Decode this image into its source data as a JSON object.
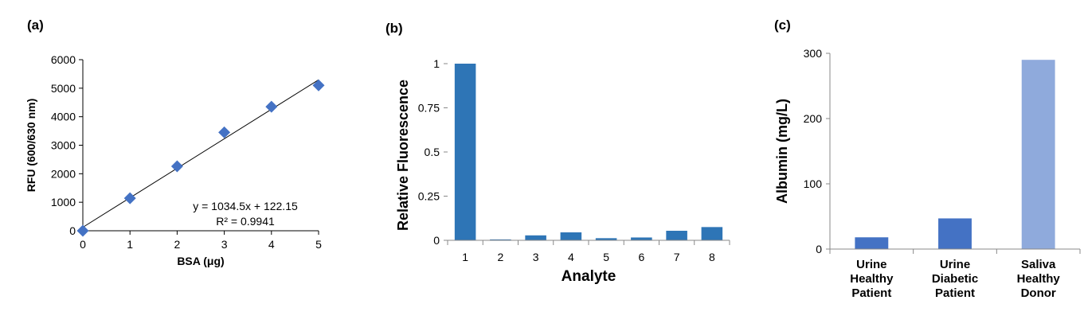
{
  "chart_data": [
    {
      "panel_label": "(a)",
      "type": "scatter",
      "xlabel": "BSA (μg)",
      "ylabel": "RFU (600/630 nm)",
      "xlim": [
        0,
        5
      ],
      "ylim": [
        0,
        6000
      ],
      "xticks": [
        "0",
        "1",
        "2",
        "3",
        "4",
        "5"
      ],
      "yticks": [
        "0",
        "1000",
        "2000",
        "3000",
        "4000",
        "5000",
        "6000"
      ],
      "grid": false,
      "marker_color": "#4472C4",
      "x": [
        0,
        1,
        2,
        3,
        4,
        5
      ],
      "y": [
        0,
        1140,
        2260,
        3450,
        4350,
        5100
      ],
      "trendline": {
        "slope": 1034.5,
        "intercept": 122.15
      },
      "annotations": [
        "y = 1034.5x + 122.15",
        "R² = 0.9941"
      ]
    },
    {
      "panel_label": "(b)",
      "type": "bar",
      "xlabel": "Analyte",
      "ylabel": "Relative Fluorescence",
      "ylim": [
        0,
        1
      ],
      "categories": [
        "1",
        "2",
        "3",
        "4",
        "5",
        "6",
        "7",
        "8"
      ],
      "yticks": [
        "0",
        "0.25",
        "0.5",
        "0.75",
        "1"
      ],
      "grid": false,
      "bar_color": "#2E75B6",
      "values": [
        1.0,
        0.005,
        0.028,
        0.045,
        0.012,
        0.016,
        0.054,
        0.075
      ]
    },
    {
      "panel_label": "(c)",
      "type": "bar",
      "xlabel": "",
      "ylabel": "Albumin (mg/L)",
      "ylim": [
        0,
        300
      ],
      "categories": [
        [
          "Urine",
          "Healthy",
          "Patient"
        ],
        [
          "Urine",
          "Diabetic",
          "Patient"
        ],
        [
          "Saliva",
          "Healthy",
          "Donor"
        ]
      ],
      "yticks": [
        "0",
        "100",
        "200",
        "300"
      ],
      "grid": false,
      "bar_colors": [
        "#4472C4",
        "#4472C4",
        "#8FAADC"
      ],
      "values": [
        18,
        47,
        290
      ]
    }
  ]
}
